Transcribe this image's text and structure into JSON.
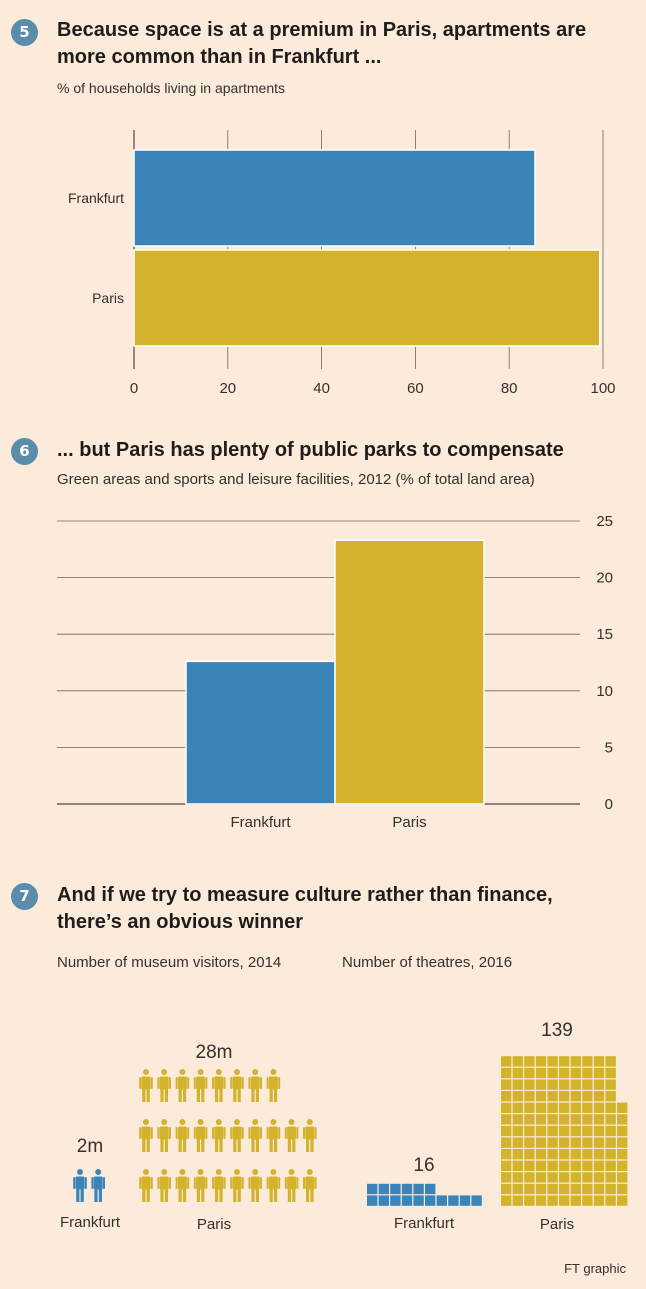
{
  "source": "FT graphic",
  "charts": [
    {
      "number": "5",
      "title": "Because space is at a premium in Paris, apartments are more common than in Frankfurt ...",
      "subtitle": "% of households living in apartments"
    },
    {
      "number": "6",
      "title": "... but Paris has plenty of public parks to compensate",
      "subtitle": "Green areas and sports and leisure facilities, 2012 (% of total land area)"
    },
    {
      "number": "7",
      "title": "And if we try to measure culture rather than finance, there’s an obvious winner",
      "subtitle_left": "Number of museum visitors, 2014",
      "subtitle_right": "Number of theatres, 2016"
    }
  ],
  "colors": {
    "frankfurt": "#3a84b9",
    "paris": "#d3b22c",
    "background": "#fcebdb",
    "badge": "#5a8cab"
  },
  "chart_data": [
    {
      "type": "bar",
      "orientation": "horizontal",
      "title": "Because space is at a premium in Paris, apartments are more common than in Frankfurt ...",
      "ylabel": "% of households living in apartments",
      "categories": [
        "Frankfurt",
        "Paris"
      ],
      "values": [
        85.5,
        99.3
      ],
      "xlim": [
        0,
        100
      ],
      "ticks": [
        "0",
        "20",
        "40",
        "60",
        "80",
        "100"
      ],
      "grid": true
    },
    {
      "type": "bar",
      "title": "... but Paris has plenty of public parks to compensate",
      "ylabel": "Green areas and sports and leisure facilities, 2012 (% of total land area)",
      "categories": [
        "Frankfurt",
        "Paris"
      ],
      "values": [
        12.6,
        23.3
      ],
      "ylim": [
        0,
        25
      ],
      "ticks": [
        "0",
        "5",
        "10",
        "15",
        "20",
        "25"
      ],
      "grid": true
    },
    {
      "type": "bar",
      "title": "Number of museum visitors, 2014",
      "categories": [
        "Frankfurt",
        "Paris"
      ],
      "values": [
        2,
        28
      ],
      "value_labels": [
        "2m",
        "28m"
      ]
    },
    {
      "type": "bar",
      "title": "Number of theatres, 2016",
      "categories": [
        "Frankfurt",
        "Paris"
      ],
      "values": [
        16,
        139
      ],
      "value_labels": [
        "16",
        "139"
      ]
    }
  ]
}
